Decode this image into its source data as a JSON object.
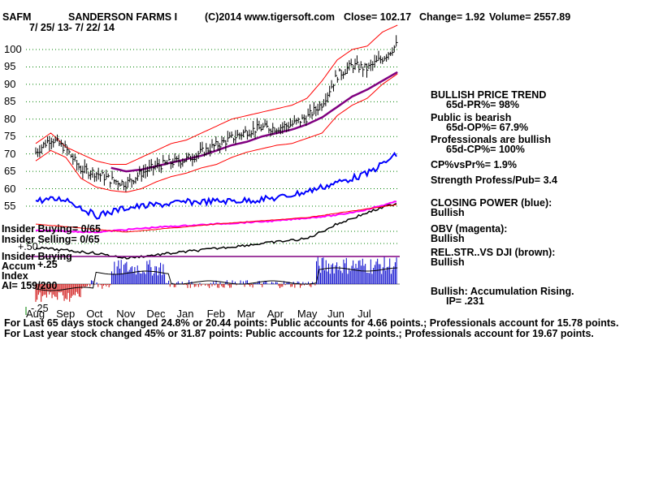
{
  "header": {
    "ticker": "SAFM",
    "company": "SANDERSON FARMS I",
    "copyright": "(C)2014 www.tigersoft.com",
    "close": "Close=  102.17",
    "change": "Change= 1.92",
    "volume": "Volume= 2557.89",
    "date_range": "7/ 25/ 13-  7/ 22/ 14"
  },
  "left_labels": {
    "insider_buying": "Insider Buying= 0/65",
    "insider_selling": "Insider Selling= 0/65",
    "insider_buying_short": "Insider Buying",
    "accum": "Accum",
    "accum_top": "+.25",
    "index": "Index",
    "accum_mid": "+.50",
    "ai": "AI= 159/200",
    "accum_bottom": "-.25"
  },
  "right_panel": [
    "BULLISH PRICE TREND",
    "65d-PR%= 98%",
    "Public is bearish",
    "65d-OP%= 67.9%",
    "Professionals are bullish",
    "65d-CP%= 100%",
    "CP%vsPr%=  1.9%",
    "Strength Profess/Pub= 3.4",
    "CLOSING POWER (blue):",
    "Bullish",
    "OBV (magenta):",
    "Bullish",
    "REL.STR..VS DJI (brown):",
    "Bullish",
    "Bullish: Accumulation Rising.",
    "IP=  .231"
  ],
  "footer": {
    "line1": "For Last 65 days stock changed  24.8% or  20.44 points:  Public accounts for  4.66 points.;  Professionals account for  15.78 points.",
    "line2": "For Last year stock changed  45% or  31.87 points:  Public accounts for  12.2 points.;  Professionals account for  19.67 points."
  },
  "colors": {
    "price_bars": "#000000",
    "bands": "#ff0000",
    "ma": "#800080",
    "closing_power": "#0000ff",
    "obv": "#ff00ff",
    "rel_str": "#000000",
    "accum_pos": "#0000cc",
    "accum_neg": "#cc0000",
    "grid": "#008000"
  },
  "chart_data": {
    "type": "line",
    "ylim": [
      55,
      105
    ],
    "y_ticks": [
      100,
      95,
      90,
      85,
      80,
      75,
      70,
      65,
      60,
      55
    ],
    "x_tick_labels": [
      "Aug",
      "Sep",
      "Oct",
      "Nov",
      "Dec",
      "Jan",
      "Feb",
      "Mar",
      "Apr",
      "May",
      "Jun",
      "Jul"
    ],
    "x": [
      0,
      0.5,
      1,
      1.5,
      2,
      2.5,
      3,
      3.5,
      4,
      4.5,
      5,
      5.5,
      6,
      6.5,
      7,
      7.5,
      8,
      8.5,
      9,
      9.5,
      10,
      10.5,
      11,
      11.5,
      12
    ],
    "series": [
      {
        "key": "price",
        "values": [
          70.5,
          74.5,
          71.5,
          65.5,
          64.5,
          62.5,
          61.5,
          64.5,
          66.5,
          67.5,
          68.5,
          70.5,
          72.5,
          74.5,
          76.5,
          77.5,
          77.5,
          78.5,
          80.5,
          84.5,
          92.5,
          95.5,
          94.5,
          97.5,
          101.5
        ]
      },
      {
        "key": "upper_band",
        "values": [
          73,
          76,
          72,
          70,
          68,
          67,
          67,
          69,
          71,
          73,
          74,
          76,
          78,
          80,
          81,
          82,
          83,
          84,
          86,
          91,
          97,
          100,
          101,
          105,
          107
        ]
      },
      {
        "key": "lower_band",
        "values": [
          68,
          71,
          69,
          63,
          60.5,
          59.5,
          59,
          60,
          62,
          63.5,
          64.5,
          66,
          67,
          69,
          70.5,
          71.5,
          72.5,
          73,
          74.5,
          76,
          81,
          84,
          86,
          90,
          93
        ]
      },
      {
        "key": "ma_65",
        "values": [
          null,
          null,
          null,
          null,
          null,
          66,
          65,
          65.5,
          66.5,
          67.5,
          68.5,
          69.5,
          71,
          72.5,
          73.5,
          75,
          76,
          77,
          78.5,
          80.5,
          83.5,
          86.5,
          88.5,
          91,
          93.5
        ]
      }
    ]
  }
}
